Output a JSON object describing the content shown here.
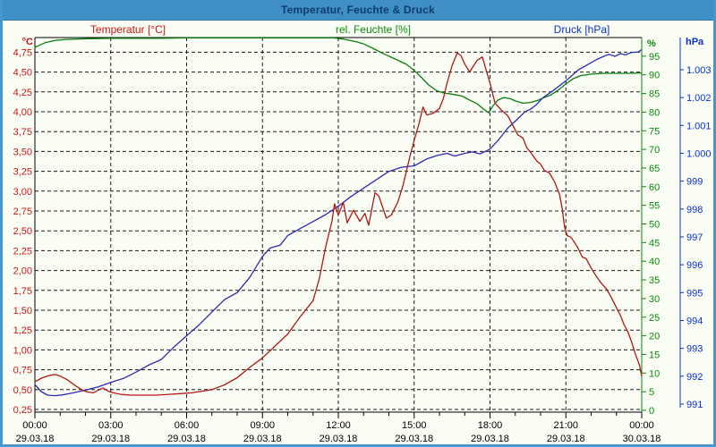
{
  "window": {
    "title": "Temperatur, Feuchte & Druck"
  },
  "series_headers": [
    {
      "label": "Temperatur [°C]",
      "color": "#cc1414",
      "center_x": 143
    },
    {
      "label": "rel. Feuchte [%]",
      "color": "#078a07",
      "center_x": 417
    },
    {
      "label": "Druck [hPa]",
      "color": "#0a2fd6",
      "center_x": 650
    }
  ],
  "chart_data": {
    "type": "line",
    "title": "Temperatur, Feuchte & Druck",
    "grid": {
      "style": "dashed",
      "v_lines_hours": [
        3,
        6,
        9,
        12,
        15,
        18,
        21
      ],
      "h_lines_follow_axis": "temp"
    },
    "x_axis": {
      "hours_range": [
        0,
        24
      ],
      "minor_tick_every_h": 1,
      "major_tick_every_h": 3,
      "tick_times": [
        "00:00",
        "03:00",
        "06:00",
        "09:00",
        "12:00",
        "15:00",
        "18:00",
        "21:00",
        "00:00"
      ],
      "tick_dates": [
        "29.03.18",
        "29.03.18",
        "29.03.18",
        "29.03.18",
        "29.03.18",
        "29.03.18",
        "29.03.18",
        "29.03.18",
        "30.03.18"
      ],
      "label_color": "#000000"
    },
    "y_axes": [
      {
        "id": "temp",
        "unit": "°C",
        "side": "left",
        "color": "#cc1414",
        "tick_min": 0.25,
        "tick_step": 0.25,
        "tick_labels": [
          "0,25",
          "0,50",
          "0,75",
          "1,00",
          "1,25",
          "1,50",
          "1,75",
          "2,00",
          "2,25",
          "2,50",
          "2,75",
          "3,00",
          "3,25",
          "3,50",
          "3,75",
          "4,00",
          "4,25",
          "4,50",
          "4,75"
        ]
      },
      {
        "id": "hum",
        "unit": "%",
        "side": "right",
        "color": "#078a07",
        "tick_min": 0,
        "tick_step": 5,
        "tick_labels": [
          "0",
          "5",
          "10",
          "15",
          "20",
          "25",
          "30",
          "35",
          "40",
          "45",
          "50",
          "55",
          "60",
          "65",
          "70",
          "75",
          "80",
          "85",
          "90",
          "95"
        ]
      },
      {
        "id": "press",
        "unit": "hPa",
        "side": "far-right",
        "color": "#0a2fd6",
        "tick_min": 991,
        "tick_step": 1,
        "tick_labels": [
          "991",
          "992",
          "993",
          "994",
          "995",
          "996",
          "997",
          "998",
          "999",
          "1.000",
          "1.001",
          "1.002",
          "1.003"
        ]
      }
    ],
    "series": [
      {
        "name": "Temperatur",
        "unit": "°C",
        "axis": "temp",
        "color": "#b41414",
        "points": [
          [
            0,
            0.6
          ],
          [
            0.3,
            0.65
          ],
          [
            0.6,
            0.68
          ],
          [
            0.8,
            0.69
          ],
          [
            1.0,
            0.67
          ],
          [
            1.3,
            0.62
          ],
          [
            1.6,
            0.55
          ],
          [
            1.9,
            0.49
          ],
          [
            2.1,
            0.47
          ],
          [
            2.3,
            0.46
          ],
          [
            2.55,
            0.5
          ],
          [
            2.7,
            0.52
          ],
          [
            2.9,
            0.48
          ],
          [
            3.1,
            0.46
          ],
          [
            3.4,
            0.44
          ],
          [
            3.8,
            0.43
          ],
          [
            4.3,
            0.43
          ],
          [
            4.8,
            0.43
          ],
          [
            5.3,
            0.44
          ],
          [
            5.8,
            0.45
          ],
          [
            6.2,
            0.46
          ],
          [
            6.6,
            0.48
          ],
          [
            7.0,
            0.5
          ],
          [
            7.5,
            0.56
          ],
          [
            8.0,
            0.65
          ],
          [
            8.5,
            0.78
          ],
          [
            9.0,
            0.9
          ],
          [
            9.5,
            1.05
          ],
          [
            10.0,
            1.2
          ],
          [
            10.5,
            1.42
          ],
          [
            11.0,
            1.62
          ],
          [
            11.25,
            1.9
          ],
          [
            11.5,
            2.3
          ],
          [
            11.75,
            2.62
          ],
          [
            11.85,
            2.84
          ],
          [
            12.0,
            2.7
          ],
          [
            12.2,
            2.86
          ],
          [
            12.35,
            2.6
          ],
          [
            12.6,
            2.76
          ],
          [
            12.85,
            2.62
          ],
          [
            13.05,
            2.72
          ],
          [
            13.2,
            2.57
          ],
          [
            13.45,
            2.98
          ],
          [
            13.6,
            2.94
          ],
          [
            13.9,
            2.66
          ],
          [
            14.1,
            2.7
          ],
          [
            14.35,
            2.86
          ],
          [
            14.55,
            3.06
          ],
          [
            14.7,
            3.26
          ],
          [
            14.85,
            3.46
          ],
          [
            15.0,
            3.64
          ],
          [
            15.2,
            3.86
          ],
          [
            15.35,
            4.06
          ],
          [
            15.5,
            3.96
          ],
          [
            15.75,
            3.98
          ],
          [
            16.0,
            4.04
          ],
          [
            16.15,
            4.16
          ],
          [
            16.3,
            4.36
          ],
          [
            16.5,
            4.58
          ],
          [
            16.7,
            4.74
          ],
          [
            16.85,
            4.71
          ],
          [
            17.0,
            4.6
          ],
          [
            17.2,
            4.5
          ],
          [
            17.35,
            4.58
          ],
          [
            17.5,
            4.65
          ],
          [
            17.7,
            4.69
          ],
          [
            17.85,
            4.52
          ],
          [
            18.0,
            4.36
          ],
          [
            18.2,
            4.11
          ],
          [
            18.45,
            4.02
          ],
          [
            18.7,
            3.95
          ],
          [
            18.9,
            3.83
          ],
          [
            19.1,
            3.71
          ],
          [
            19.3,
            3.67
          ],
          [
            19.45,
            3.55
          ],
          [
            19.65,
            3.47
          ],
          [
            19.85,
            3.38
          ],
          [
            20.0,
            3.34
          ],
          [
            20.15,
            3.26
          ],
          [
            20.35,
            3.23
          ],
          [
            20.55,
            3.12
          ],
          [
            20.75,
            2.96
          ],
          [
            20.85,
            2.79
          ],
          [
            20.95,
            2.55
          ],
          [
            21.05,
            2.44
          ],
          [
            21.2,
            2.42
          ],
          [
            21.45,
            2.3
          ],
          [
            21.65,
            2.17
          ],
          [
            21.8,
            2.15
          ],
          [
            22.0,
            2.03
          ],
          [
            22.2,
            1.93
          ],
          [
            22.4,
            1.84
          ],
          [
            22.6,
            1.77
          ],
          [
            22.8,
            1.66
          ],
          [
            23.0,
            1.53
          ],
          [
            23.15,
            1.44
          ],
          [
            23.3,
            1.32
          ],
          [
            23.45,
            1.23
          ],
          [
            23.6,
            1.1
          ],
          [
            23.75,
            0.95
          ],
          [
            23.85,
            0.86
          ],
          [
            23.92,
            0.8
          ],
          [
            24,
            0.67
          ]
        ]
      },
      {
        "name": "rel. Feuchte",
        "unit": "%",
        "axis": "hum",
        "color": "#0b7c0b",
        "points": [
          [
            0,
            97.4
          ],
          [
            0.4,
            98.6
          ],
          [
            0.8,
            99.2
          ],
          [
            1.2,
            99.5
          ],
          [
            2,
            99.7
          ],
          [
            3,
            99.8
          ],
          [
            4,
            99.8
          ],
          [
            5,
            99.8
          ],
          [
            6,
            99.9
          ],
          [
            7,
            99.9
          ],
          [
            8,
            99.9
          ],
          [
            9,
            99.9
          ],
          [
            10,
            99.9
          ],
          [
            11,
            99.9
          ],
          [
            11.8,
            99.9
          ],
          [
            12.2,
            99.6
          ],
          [
            12.7,
            98.9
          ],
          [
            13.0,
            98.3
          ],
          [
            13.4,
            97.0
          ],
          [
            13.8,
            95.6
          ],
          [
            14.2,
            94.4
          ],
          [
            14.7,
            92.8
          ],
          [
            15.0,
            91.2
          ],
          [
            15.3,
            89.2
          ],
          [
            15.55,
            87.4
          ],
          [
            15.9,
            85.7
          ],
          [
            16.2,
            85.1
          ],
          [
            16.6,
            84.7
          ],
          [
            16.9,
            84.3
          ],
          [
            17.2,
            83.2
          ],
          [
            17.5,
            82.2
          ],
          [
            17.75,
            80.8
          ],
          [
            17.95,
            79.8
          ],
          [
            18.1,
            81.5
          ],
          [
            18.3,
            83.2
          ],
          [
            18.55,
            83.9
          ],
          [
            18.8,
            83.6
          ],
          [
            19.0,
            83.0
          ],
          [
            19.3,
            82.4
          ],
          [
            19.6,
            82.6
          ],
          [
            19.9,
            83.2
          ],
          [
            20.1,
            83.8
          ],
          [
            20.4,
            84.6
          ],
          [
            20.7,
            85.9
          ],
          [
            21.0,
            87.6
          ],
          [
            21.3,
            89.0
          ],
          [
            21.6,
            89.8
          ],
          [
            22.0,
            90.2
          ],
          [
            22.5,
            90.4
          ],
          [
            23.0,
            90.4
          ],
          [
            23.5,
            90.4
          ],
          [
            24,
            90.5
          ]
        ]
      },
      {
        "name": "Druck",
        "unit": "hPa",
        "axis": "press",
        "color": "#2a2ab5",
        "points": [
          [
            0,
            991.7
          ],
          [
            0.25,
            991.45
          ],
          [
            0.5,
            991.32
          ],
          [
            0.8,
            991.3
          ],
          [
            1.1,
            991.33
          ],
          [
            1.5,
            991.4
          ],
          [
            2.0,
            991.5
          ],
          [
            2.5,
            991.62
          ],
          [
            3.0,
            991.78
          ],
          [
            3.5,
            991.92
          ],
          [
            4.0,
            992.15
          ],
          [
            4.5,
            992.4
          ],
          [
            5.0,
            992.6
          ],
          [
            5.5,
            993.05
          ],
          [
            6.0,
            993.45
          ],
          [
            6.5,
            993.85
          ],
          [
            7.0,
            994.3
          ],
          [
            7.5,
            994.75
          ],
          [
            8.0,
            995.0
          ],
          [
            8.5,
            995.55
          ],
          [
            9.0,
            996.3
          ],
          [
            9.3,
            996.6
          ],
          [
            9.7,
            996.7
          ],
          [
            10.0,
            997.05
          ],
          [
            10.5,
            997.3
          ],
          [
            11.0,
            997.55
          ],
          [
            11.5,
            997.8
          ],
          [
            12.0,
            998.1
          ],
          [
            12.5,
            998.45
          ],
          [
            13.0,
            998.75
          ],
          [
            13.5,
            999.05
          ],
          [
            14.0,
            999.35
          ],
          [
            14.5,
            999.5
          ],
          [
            15.0,
            999.55
          ],
          [
            15.5,
            999.8
          ],
          [
            15.9,
            999.92
          ],
          [
            16.3,
            1000.0
          ],
          [
            16.6,
            999.9
          ],
          [
            17.0,
            1000.0
          ],
          [
            17.3,
            1000.05
          ],
          [
            17.6,
            999.98
          ],
          [
            18.0,
            1000.15
          ],
          [
            18.35,
            1000.5
          ],
          [
            18.7,
            1000.9
          ],
          [
            19.05,
            1001.2
          ],
          [
            19.4,
            1001.5
          ],
          [
            19.6,
            1001.58
          ],
          [
            19.8,
            1001.72
          ],
          [
            20.1,
            1002.0
          ],
          [
            20.5,
            1002.25
          ],
          [
            21.0,
            1002.6
          ],
          [
            21.5,
            1003.0
          ],
          [
            21.9,
            1003.2
          ],
          [
            22.25,
            1003.38
          ],
          [
            22.5,
            1003.48
          ],
          [
            22.7,
            1003.55
          ],
          [
            22.95,
            1003.48
          ],
          [
            23.15,
            1003.58
          ],
          [
            23.35,
            1003.53
          ],
          [
            23.6,
            1003.62
          ],
          [
            23.85,
            1003.63
          ],
          [
            24,
            1003.72
          ]
        ]
      }
    ]
  }
}
